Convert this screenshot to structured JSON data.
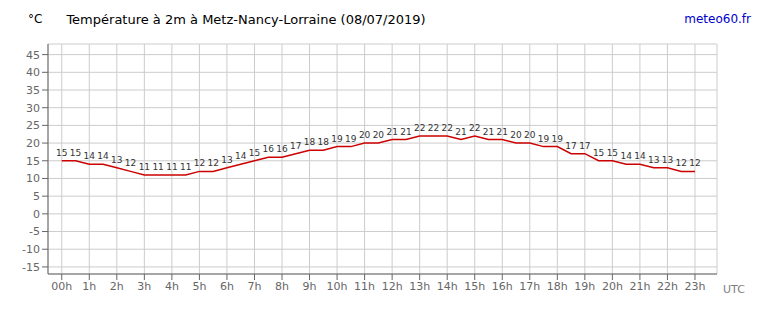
{
  "chart_data": {
    "type": "line",
    "title": "Température à 2m à Metz-Nancy-Lorraine (08/07/2019)",
    "x_label": "UTC",
    "y_label": "°C",
    "annotations": [
      {
        "text": "meteo60.fr",
        "color": "#0000cc"
      }
    ],
    "x": [
      0,
      0.5,
      1,
      1.5,
      2,
      2.5,
      3,
      3.5,
      4,
      4.5,
      5,
      5.5,
      6,
      6.5,
      7,
      7.5,
      8,
      8.5,
      9,
      9.5,
      10,
      10.5,
      11,
      11.5,
      12,
      12.5,
      13,
      13.5,
      14,
      14.5,
      15,
      15.5,
      16,
      16.5,
      17,
      17.5,
      18,
      18.5,
      19,
      19.5,
      20,
      20.5,
      21,
      21.5,
      22,
      22.5,
      23
    ],
    "values": [
      15,
      15,
      14,
      14,
      13,
      12,
      11,
      11,
      11,
      11,
      12,
      12,
      13,
      14,
      15,
      16,
      16,
      17,
      18,
      18,
      19,
      19,
      20,
      20,
      21,
      21,
      22,
      22,
      22,
      21,
      22,
      21,
      21,
      20,
      20,
      19,
      19,
      17,
      17,
      15,
      15,
      14,
      14,
      13,
      13,
      12,
      12
    ],
    "color": "#cc0000",
    "xlim": [
      -0.5,
      23.8
    ],
    "xticks": [
      {
        "value": 0,
        "label": "00h"
      },
      {
        "value": 1,
        "label": "1h"
      },
      {
        "value": 2,
        "label": "2h"
      },
      {
        "value": 3,
        "label": "3h"
      },
      {
        "value": 4,
        "label": "4h"
      },
      {
        "value": 5,
        "label": "5h"
      },
      {
        "value": 6,
        "label": "6h"
      },
      {
        "value": 7,
        "label": "7h"
      },
      {
        "value": 8,
        "label": "8h"
      },
      {
        "value": 9,
        "label": "9h"
      },
      {
        "value": 10,
        "label": "10h"
      },
      {
        "value": 11,
        "label": "11h"
      },
      {
        "value": 12,
        "label": "12h"
      },
      {
        "value": 13,
        "label": "13h"
      },
      {
        "value": 14,
        "label": "14h"
      },
      {
        "value": 15,
        "label": "15h"
      },
      {
        "value": 16,
        "label": "16h"
      },
      {
        "value": 17,
        "label": "17h"
      },
      {
        "value": 18,
        "label": "18h"
      },
      {
        "value": 19,
        "label": "19h"
      },
      {
        "value": 20,
        "label": "20h"
      },
      {
        "value": 21,
        "label": "21h"
      },
      {
        "value": 22,
        "label": "22h"
      },
      {
        "value": 23,
        "label": "23h"
      }
    ],
    "ylim": [
      -17,
      48
    ],
    "yticks": [
      -15,
      -10,
      -5,
      0,
      5,
      10,
      15,
      20,
      25,
      30,
      35,
      40,
      45
    ],
    "grid": true,
    "data_labels": true
  }
}
